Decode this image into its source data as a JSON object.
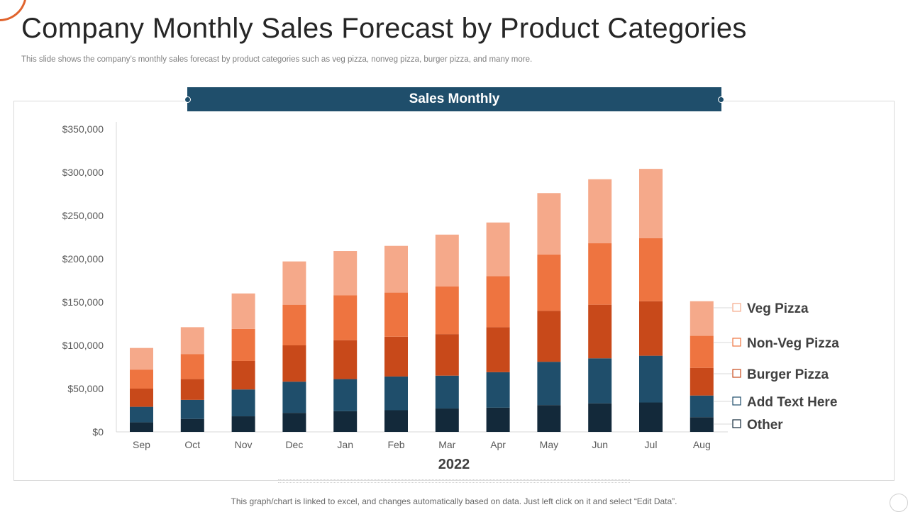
{
  "page": {
    "title": "Company Monthly Sales Forecast by Product Categories",
    "subtitle": "This slide shows the company’s monthly sales forecast by product categories such as veg pizza,  nonveg pizza,  burger pizza,  and many more.",
    "footer": "This graph/chart is linked to excel,  and changes automatically based on data. Just left click on it and select “Edit Data”."
  },
  "chart_data": {
    "type": "bar",
    "stacked": true,
    "title": "Sales Monthly",
    "xlabel": "2022",
    "ylabel": "",
    "ylim": [
      0,
      350000
    ],
    "ytick_values": [
      0,
      50000,
      100000,
      150000,
      200000,
      250000,
      300000,
      350000
    ],
    "ytick_labels": [
      "$0",
      "$50,000",
      "$100,000",
      "$150,000",
      "$200,000",
      "$250,000",
      "$300,000",
      "$350,000"
    ],
    "grid": false,
    "legend_position": "right",
    "categories": [
      "Sep",
      "Oct",
      "Nov",
      "Dec",
      "Jan",
      "Feb",
      "Mar",
      "Apr",
      "May",
      "Jun",
      "Jul",
      "Aug"
    ],
    "series": [
      {
        "name": "Other",
        "color": "#13293a",
        "values": [
          11000,
          15000,
          18000,
          22000,
          24000,
          25000,
          27000,
          28000,
          31000,
          33000,
          34000,
          17000
        ]
      },
      {
        "name": "Add Text Here",
        "color": "#1f4e6b",
        "values": [
          18000,
          22000,
          31000,
          36000,
          37000,
          39000,
          38000,
          41000,
          50000,
          52000,
          54000,
          25000
        ]
      },
      {
        "name": "Burger Pizza",
        "color": "#c8491a",
        "values": [
          21000,
          24000,
          33000,
          42000,
          45000,
          46000,
          48000,
          52000,
          59000,
          62000,
          63000,
          32000
        ]
      },
      {
        "name": "Non-Veg Pizza",
        "color": "#ee7440",
        "values": [
          22000,
          29000,
          37000,
          47000,
          52000,
          51000,
          55000,
          59000,
          65000,
          71000,
          73000,
          37000
        ]
      },
      {
        "name": "Veg Pizza",
        "color": "#f5a98a",
        "values": [
          25000,
          31000,
          41000,
          50000,
          51000,
          54000,
          60000,
          62000,
          71000,
          74000,
          80000,
          40000
        ]
      }
    ],
    "legend_order": [
      "Veg Pizza",
      "Non-Veg Pizza",
      "Burger Pizza",
      "Add Text Here",
      "Other"
    ]
  }
}
